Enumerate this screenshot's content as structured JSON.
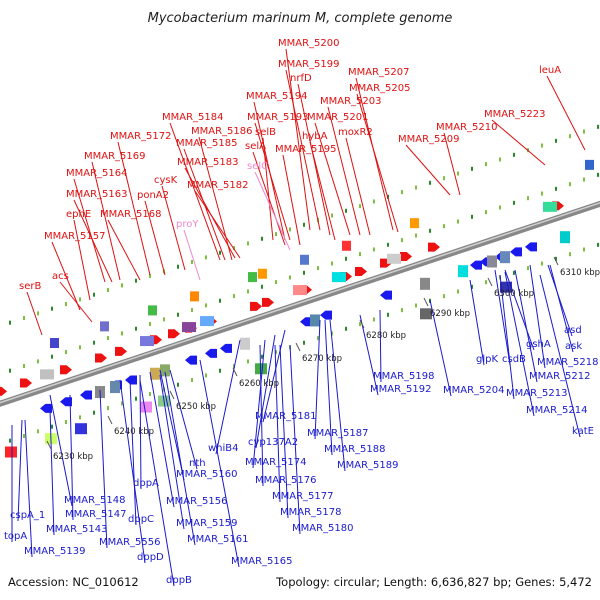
{
  "title": "Mycobacterium marinum M, complete genome",
  "accession": "Accession: NC_010612",
  "topology": "Topology: circular; Length: 6,636,827 bp; Genes: 5,472",
  "colors": {
    "forward_label": "#dd1111",
    "reverse_label": "#1a1acc",
    "pseudo_label": "#ee88cc",
    "backbone": "#888888"
  },
  "kbp_ticks": [
    "6230 kbp",
    "6240 kbp",
    "6250 kbp",
    "6260 kbp",
    "6270 kbp",
    "6280 kbp",
    "6290 kbp",
    "6300 kbp",
    "6310 kbp"
  ],
  "forward_labels": [
    {
      "text": "MMAR_5200"
    },
    {
      "text": "MMAR_5199"
    },
    {
      "text": "nrfD"
    },
    {
      "text": "MMAR_5207"
    },
    {
      "text": "MMAR_5205"
    },
    {
      "text": "MMAR_5194"
    },
    {
      "text": "MMAR_5203"
    },
    {
      "text": "MMAR_5184"
    },
    {
      "text": "MMAR_5193"
    },
    {
      "text": "MMAR_5201"
    },
    {
      "text": "MMAR_5186"
    },
    {
      "text": "selB"
    },
    {
      "text": "hybA"
    },
    {
      "text": "moxR2"
    },
    {
      "text": "MMAR_5172"
    },
    {
      "text": "MMAR_5185"
    },
    {
      "text": "selA"
    },
    {
      "text": "MMAR_5195"
    },
    {
      "text": "MMAR_5169"
    },
    {
      "text": "MMAR_5183"
    },
    {
      "text": "MMAR_5164"
    },
    {
      "text": "cysK"
    },
    {
      "text": "MMAR_5182"
    },
    {
      "text": "MMAR_5163"
    },
    {
      "text": "ponA2"
    },
    {
      "text": "ephE"
    },
    {
      "text": "MMAR_5168"
    },
    {
      "text": "MMAR_5157"
    },
    {
      "text": "acs"
    },
    {
      "text": "serB"
    },
    {
      "text": "leuA"
    },
    {
      "text": "MMAR_5223"
    },
    {
      "text": "MMAR_5210"
    },
    {
      "text": "MMAR_5209"
    }
  ],
  "pseudo_labels": [
    {
      "text": "selC"
    },
    {
      "text": "proY"
    }
  ],
  "reverse_labels": [
    {
      "text": "glpK"
    },
    {
      "text": "csdB"
    },
    {
      "text": "gshA"
    },
    {
      "text": "asd"
    },
    {
      "text": "ask"
    },
    {
      "text": "MMAR_5198"
    },
    {
      "text": "MMAR_5192"
    },
    {
      "text": "MMAR_5204"
    },
    {
      "text": "MMAR_5212"
    },
    {
      "text": "MMAR_5213"
    },
    {
      "text": "MMAR_5214"
    },
    {
      "text": "MMAR_5218"
    },
    {
      "text": "katE"
    },
    {
      "text": "MMAR_5181"
    },
    {
      "text": "MMAR_5187"
    },
    {
      "text": "cyp137A2"
    },
    {
      "text": "MMAR_5188"
    },
    {
      "text": "whiB4"
    },
    {
      "text": "MMAR_5174"
    },
    {
      "text": "MMAR_5189"
    },
    {
      "text": "MMAR_5176"
    },
    {
      "text": "MMAR_5177"
    },
    {
      "text": "MMAR_5178"
    },
    {
      "text": "MMAR_5180"
    },
    {
      "text": "nth"
    },
    {
      "text": "MMAR_5160"
    },
    {
      "text": "dppA"
    },
    {
      "text": "MMAR_5156"
    },
    {
      "text": "MMAR_5148"
    },
    {
      "text": "MMAR_5147"
    },
    {
      "text": "dppC"
    },
    {
      "text": "MMAR_5159"
    },
    {
      "text": "cspA_1"
    },
    {
      "text": "MMAR_5143"
    },
    {
      "text": "MMAR_5556"
    },
    {
      "text": "MMAR_5161"
    },
    {
      "text": "topA"
    },
    {
      "text": "dppD"
    },
    {
      "text": "MMAR_5139"
    },
    {
      "text": "MMAR_5165"
    },
    {
      "text": "dppB"
    }
  ]
}
